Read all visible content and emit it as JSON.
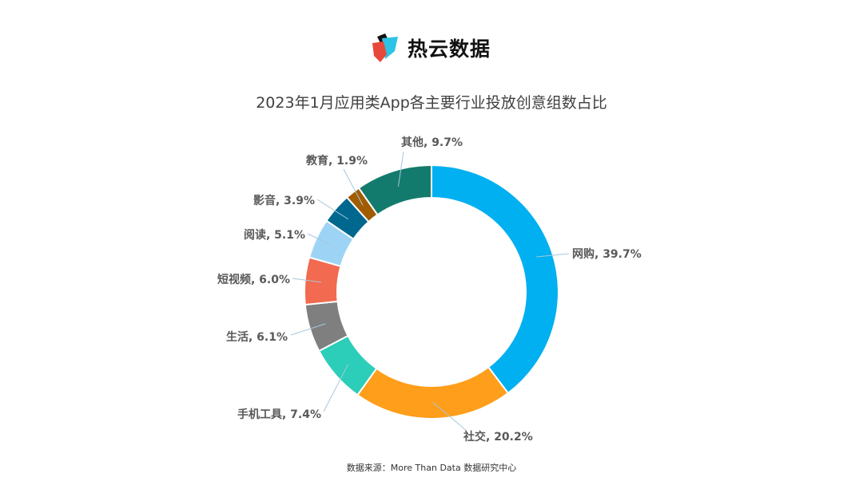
{
  "logo": {
    "text": "热云数据"
  },
  "source": "数据来源：More Than Data 数据研究中心",
  "chart_data": {
    "type": "pie",
    "donut": true,
    "title": "2023年1月应用类App各主要行业投放创意组数占比",
    "legend": "none",
    "slices": [
      {
        "label": "网购",
        "value": 39.7,
        "text": "网购, 39.7%",
        "color": "#00B0F0"
      },
      {
        "label": "社交",
        "value": 20.2,
        "text": "社交, 20.2%",
        "color": "#FF9E1B"
      },
      {
        "label": "手机工具",
        "value": 7.4,
        "text": "手机工具, 7.4%",
        "color": "#2CCDB9"
      },
      {
        "label": "生活",
        "value": 6.1,
        "text": "生活, 6.1%",
        "color": "#7F7F7F"
      },
      {
        "label": "短视频",
        "value": 6.0,
        "text": "短视频, 6.0%",
        "color": "#F26A4F"
      },
      {
        "label": "阅读",
        "value": 5.1,
        "text": "阅读, 5.1%",
        "color": "#9DD4F6"
      },
      {
        "label": "影音",
        "value": 3.9,
        "text": "影音, 3.9%",
        "color": "#00678F"
      },
      {
        "label": "教育",
        "value": 1.9,
        "text": "教育, 1.9%",
        "color": "#A15C00"
      },
      {
        "label": "其他",
        "value": 9.7,
        "text": "其他, 9.7%",
        "color": "#137B6E"
      }
    ]
  }
}
